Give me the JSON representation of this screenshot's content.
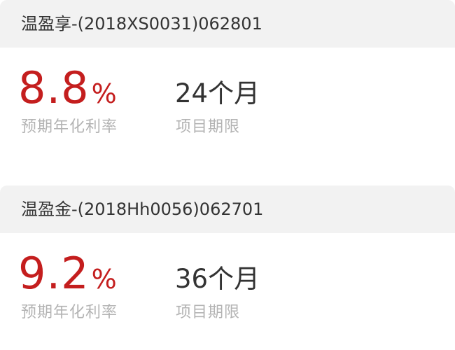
{
  "products": [
    {
      "title": "温盈享-(2018XS0031)062801",
      "rate_value": "8.8",
      "rate_unit": "%",
      "rate_label": "预期年化利率",
      "term": "24个月",
      "term_label": "项目期限"
    },
    {
      "title": "温盈金-(2018Hh0056)062701",
      "rate_value": "9.2",
      "rate_unit": "%",
      "rate_label": "预期年化利率",
      "term": "36个月",
      "term_label": "项目期限"
    }
  ],
  "colors": {
    "rate": "#c41e1e",
    "header_bg": "#f2f2f2",
    "title_text": "#333333",
    "label_text": "#b3b3b3"
  }
}
